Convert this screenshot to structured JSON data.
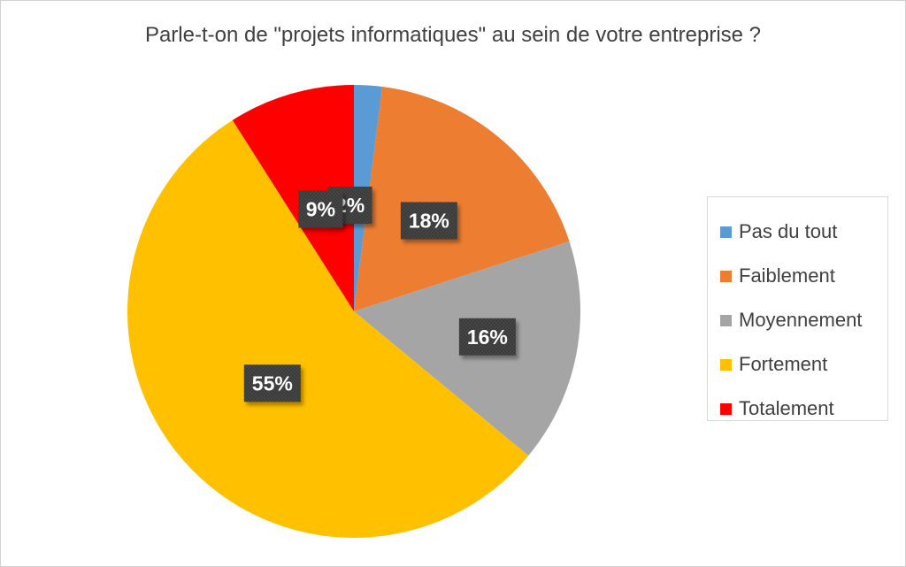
{
  "chart_data": {
    "type": "pie",
    "title": "Parle-t-on de \"projets informatiques\" au sein de votre entreprise ?",
    "slices": [
      {
        "label": "Pas du tout",
        "value": 2,
        "display": "2%",
        "color": "#5B9BD5"
      },
      {
        "label": "Faiblement",
        "value": 18,
        "display": "18%",
        "color": "#ED7D31"
      },
      {
        "label": "Moyennement",
        "value": 16,
        "display": "16%",
        "color": "#A5A5A5"
      },
      {
        "label": "Fortement",
        "value": 55,
        "display": "55%",
        "color": "#FFC000"
      },
      {
        "label": "Totalement",
        "value": 9,
        "display": "9%",
        "color": "#FF0000"
      }
    ],
    "legend_position": "right",
    "label_style": {
      "background": "#404040",
      "text_color": "#ffffff"
    }
  }
}
